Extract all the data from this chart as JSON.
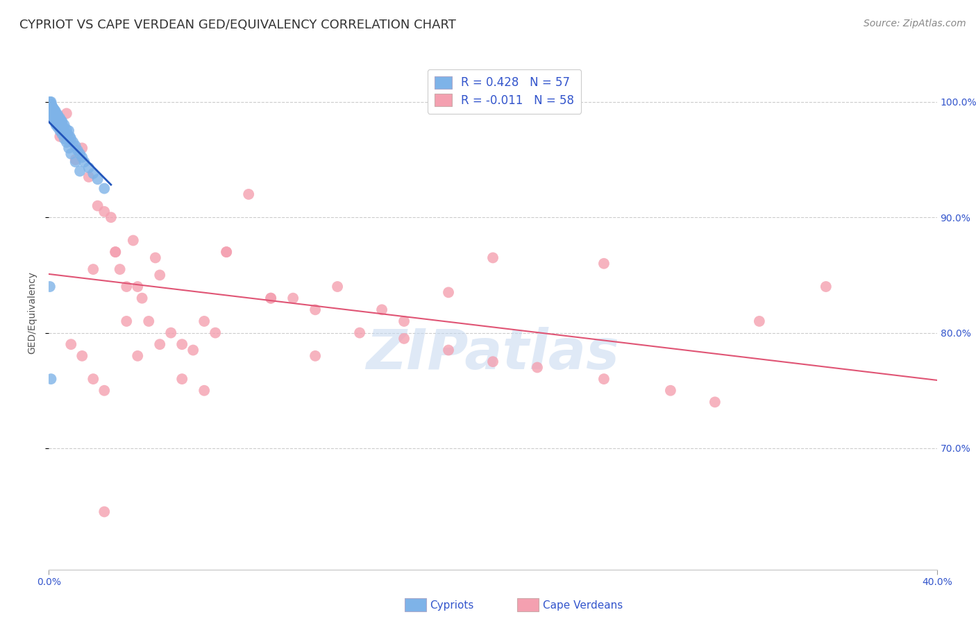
{
  "title": "CYPRIOT VS CAPE VERDEAN GED/EQUIVALENCY CORRELATION CHART",
  "source": "Source: ZipAtlas.com",
  "ylabel": "GED/Equivalency",
  "xlim": [
    0.0,
    0.4
  ],
  "ylim": [
    0.595,
    1.04
  ],
  "background_color": "#ffffff",
  "grid_color": "#cccccc",
  "watermark": "ZIPatlas",
  "legend_r1": "R = 0.428",
  "legend_n1": "N = 57",
  "legend_r2": "R = -0.011",
  "legend_n2": "N = 58",
  "cypriot_color": "#7eb3e8",
  "cape_verdean_color": "#f4a0b0",
  "line_color_cypriot": "#2255bb",
  "line_color_cape_verdean": "#e05575",
  "title_fontsize": 13,
  "label_fontsize": 10,
  "tick_fontsize": 10,
  "legend_fontsize": 12,
  "source_fontsize": 10,
  "cypriot_x": [
    0.0005,
    0.001,
    0.0012,
    0.0008,
    0.0015,
    0.0018,
    0.0022,
    0.0025,
    0.003,
    0.0028,
    0.0032,
    0.004,
    0.0038,
    0.0042,
    0.005,
    0.0048,
    0.0055,
    0.006,
    0.0058,
    0.007,
    0.0068,
    0.008,
    0.009,
    0.0085,
    0.0095,
    0.01,
    0.011,
    0.012,
    0.013,
    0.014,
    0.015,
    0.016,
    0.018,
    0.02,
    0.022,
    0.025,
    0.0003,
    0.0005,
    0.0008,
    0.001,
    0.0012,
    0.0015,
    0.002,
    0.0025,
    0.003,
    0.0032,
    0.004,
    0.005,
    0.006,
    0.007,
    0.008,
    0.009,
    0.01,
    0.012,
    0.014,
    0.0005,
    0.001
  ],
  "cypriot_y": [
    1.0,
    1.0,
    0.998,
    0.997,
    0.996,
    0.995,
    0.994,
    0.993,
    0.992,
    0.991,
    0.99,
    0.989,
    0.988,
    0.987,
    0.986,
    0.985,
    0.984,
    0.983,
    0.982,
    0.98,
    0.978,
    0.976,
    0.975,
    0.972,
    0.97,
    0.968,
    0.965,
    0.962,
    0.958,
    0.955,
    0.952,
    0.948,
    0.943,
    0.938,
    0.933,
    0.925,
    0.998,
    0.996,
    0.994,
    0.992,
    0.99,
    0.988,
    0.986,
    0.984,
    0.982,
    0.98,
    0.978,
    0.975,
    0.972,
    0.968,
    0.965,
    0.96,
    0.955,
    0.948,
    0.94,
    0.84,
    0.76
  ],
  "cape_verdean_x": [
    0.005,
    0.008,
    0.012,
    0.015,
    0.018,
    0.02,
    0.022,
    0.025,
    0.028,
    0.03,
    0.032,
    0.035,
    0.038,
    0.04,
    0.042,
    0.045,
    0.048,
    0.05,
    0.055,
    0.06,
    0.065,
    0.07,
    0.075,
    0.08,
    0.09,
    0.1,
    0.11,
    0.12,
    0.13,
    0.15,
    0.16,
    0.18,
    0.2,
    0.22,
    0.25,
    0.28,
    0.3,
    0.32,
    0.01,
    0.015,
    0.02,
    0.025,
    0.03,
    0.035,
    0.04,
    0.05,
    0.06,
    0.07,
    0.08,
    0.1,
    0.12,
    0.14,
    0.16,
    0.2,
    0.25,
    0.35,
    0.025,
    0.18
  ],
  "cape_verdean_y": [
    0.97,
    0.99,
    0.95,
    0.96,
    0.935,
    0.855,
    0.91,
    0.905,
    0.9,
    0.87,
    0.855,
    0.84,
    0.88,
    0.84,
    0.83,
    0.81,
    0.865,
    0.85,
    0.8,
    0.79,
    0.785,
    0.81,
    0.8,
    0.87,
    0.92,
    0.83,
    0.83,
    0.78,
    0.84,
    0.82,
    0.795,
    0.785,
    0.775,
    0.77,
    0.76,
    0.75,
    0.74,
    0.81,
    0.79,
    0.78,
    0.76,
    0.75,
    0.87,
    0.81,
    0.78,
    0.79,
    0.76,
    0.75,
    0.87,
    0.83,
    0.82,
    0.8,
    0.81,
    0.865,
    0.86,
    0.84,
    0.645,
    0.835
  ]
}
